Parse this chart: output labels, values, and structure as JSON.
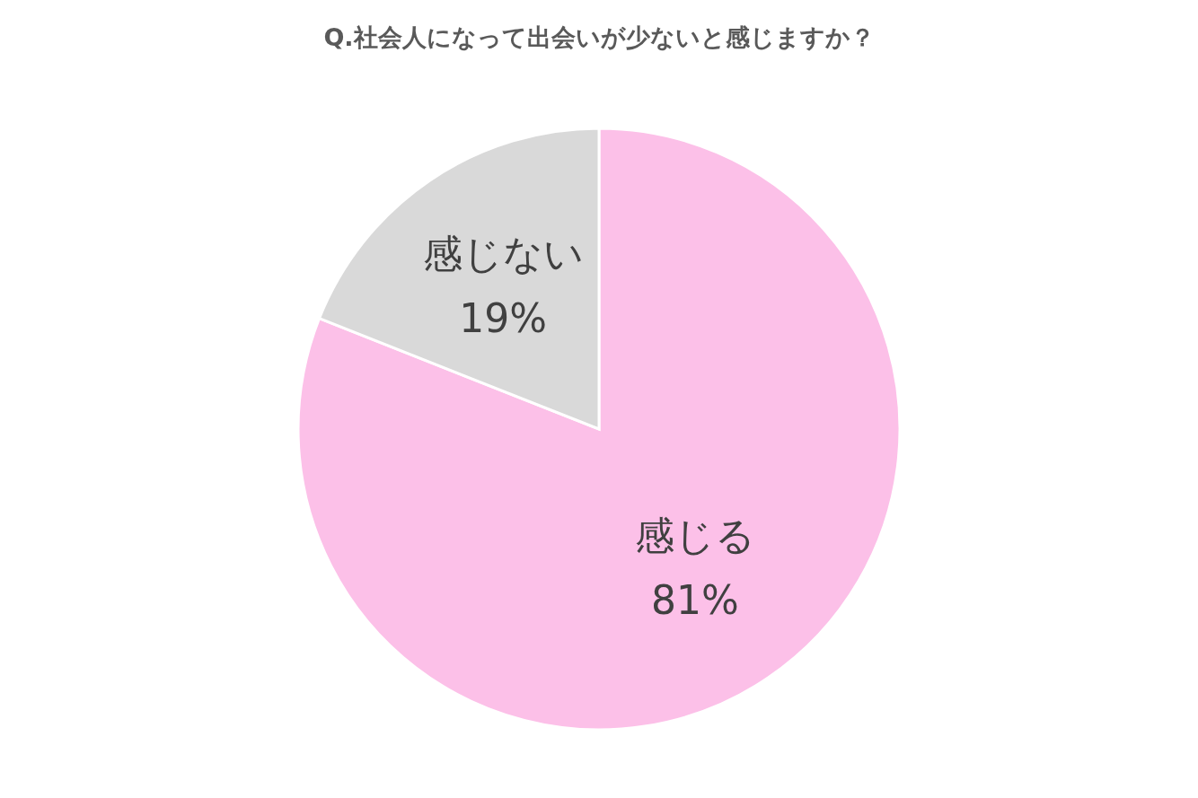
{
  "chart_data": {
    "type": "pie",
    "title": "Q.社会人になって出会いが少ないと感じますか？",
    "categories": [
      "感じる",
      "感じない"
    ],
    "values": [
      81,
      19
    ],
    "colors": [
      "#fcc0e8",
      "#d9d9d9"
    ],
    "value_labels": [
      "81%",
      "19%"
    ],
    "legend": false
  }
}
